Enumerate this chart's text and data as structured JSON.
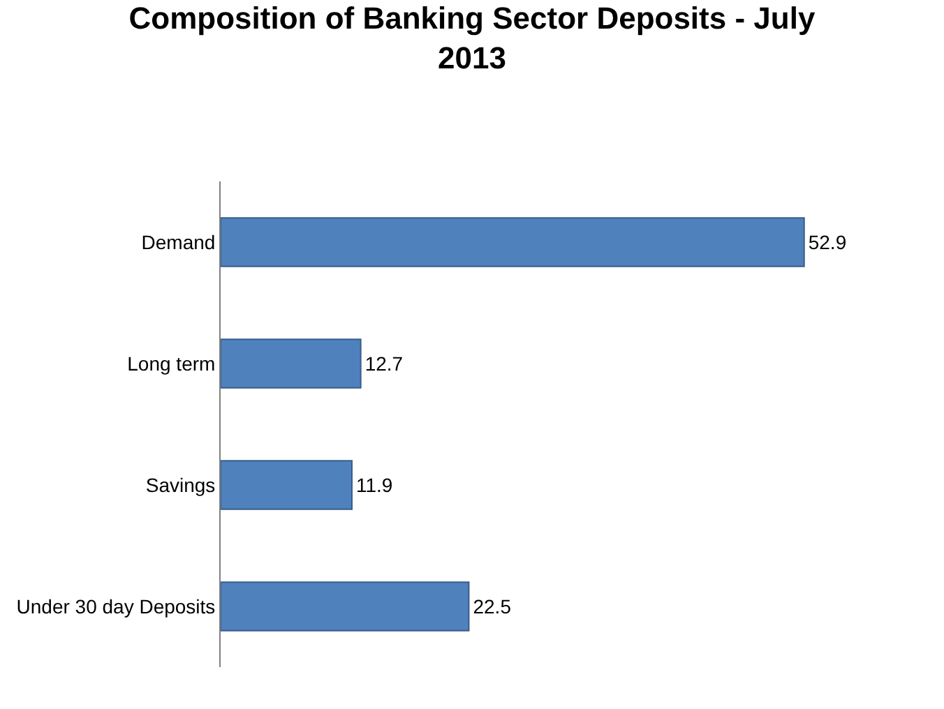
{
  "chart_data": {
    "type": "bar",
    "orientation": "horizontal",
    "title": "Composition of Banking Sector Deposits - July 2013",
    "categories": [
      "Demand",
      "Long term",
      "Savings",
      "Under 30 day Deposits"
    ],
    "values": [
      52.9,
      12.7,
      11.9,
      22.5
    ],
    "color": "#4f81bd",
    "data_labels": true,
    "legend": false
  }
}
